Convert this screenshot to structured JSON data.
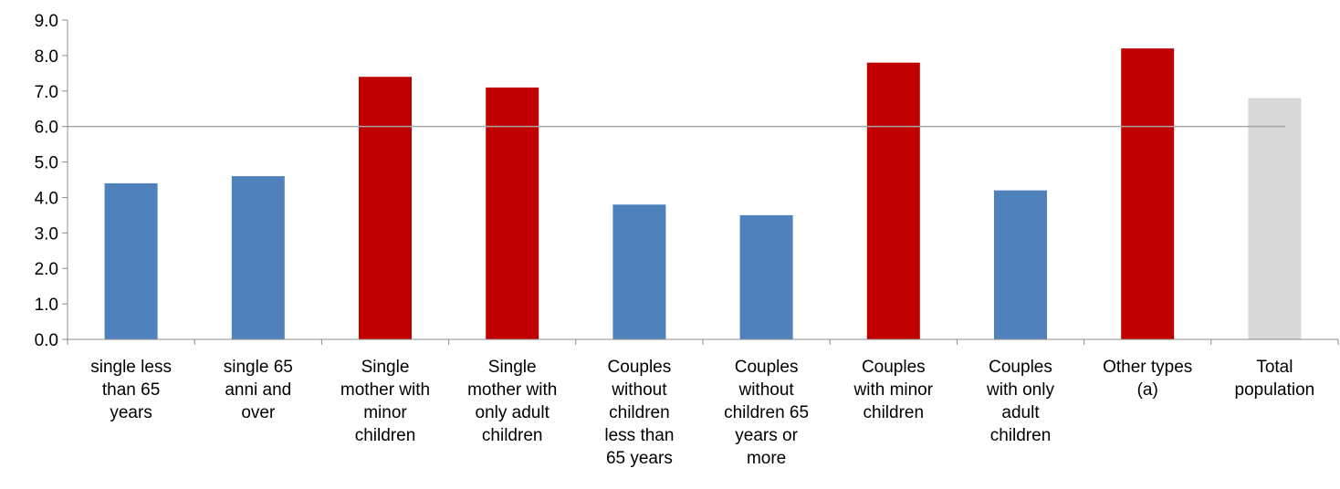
{
  "chart_data": {
    "type": "bar",
    "categories": [
      [
        "single less",
        "than 65",
        "years"
      ],
      [
        "single 65",
        "anni and",
        "over"
      ],
      [
        "Single",
        "mother with",
        "minor",
        "children"
      ],
      [
        "Single",
        "mother with",
        "only adult",
        "children"
      ],
      [
        "Couples",
        "without",
        "children",
        "less than",
        "65 years"
      ],
      [
        "Couples",
        "without",
        "children 65",
        "years or",
        "more"
      ],
      [
        "Couples",
        "with minor",
        "children"
      ],
      [
        "Couples",
        "with only",
        "adult",
        "children"
      ],
      [
        "Other types",
        "(a)"
      ],
      [
        "Total",
        "population"
      ]
    ],
    "values": [
      4.4,
      4.6,
      7.4,
      7.1,
      3.8,
      3.5,
      7.8,
      4.2,
      8.2,
      6.8
    ],
    "bar_colors": [
      "#4f81bd",
      "#4f81bd",
      "#c00000",
      "#c00000",
      "#4f81bd",
      "#4f81bd",
      "#c00000",
      "#4f81bd",
      "#c00000",
      "#d9d9d9"
    ],
    "reference_line": 6.0,
    "reference_line_color": "#a6a6a6",
    "yticks": [
      "0.0",
      "1.0",
      "2.0",
      "3.0",
      "4.0",
      "5.0",
      "6.0",
      "7.0",
      "8.0",
      "9.0"
    ],
    "ylim": [
      0,
      9
    ],
    "grid": false,
    "title": "",
    "xlabel": "",
    "ylabel": ""
  }
}
